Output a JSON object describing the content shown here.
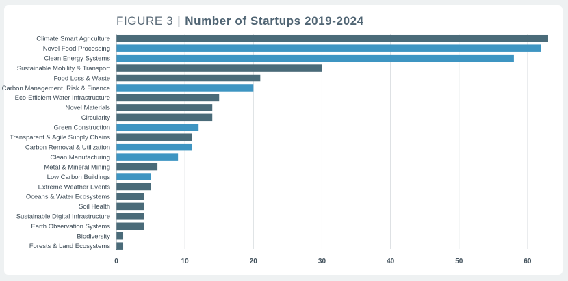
{
  "figure": {
    "label": "FIGURE 3",
    "separator": "|",
    "title": "Number of Startups 2019-2024"
  },
  "colors": {
    "dark": "#4a6b79",
    "light": "#3e95c2",
    "grid": "#d9dde0",
    "background": "#eef1f2"
  },
  "chart_data": {
    "type": "bar",
    "orientation": "horizontal",
    "title": "Number of Startups 2019-2024",
    "xlabel": "",
    "ylabel": "",
    "xlim": [
      0,
      64
    ],
    "xticks": [
      0,
      10,
      20,
      30,
      40,
      50,
      60
    ],
    "grid": "vertical",
    "categories": [
      "Climate Smart Agriculture",
      "Novel Food Processing",
      "Clean Energy Systems",
      "Sustainable Mobility & Transport",
      "Food Loss & Waste",
      "Carbon Management, Risk & Finance",
      "Eco-Efficient Water Infrastructure",
      "Novel Materials",
      "Circularity",
      "Green Construction",
      "Transparent & Agile Supply Chains",
      "Carbon Removal & Utilization",
      "Clean Manufacturing",
      "Metal & Mineral Mining",
      "Low Carbon Buildings",
      "Extreme Weather Events",
      "Oceans & Water Ecosystems",
      "Soil Health",
      "Sustainable Digital Infrastructure",
      "Earth Observation Systems",
      "Biodiversity",
      "Forests & Land Ecosystems"
    ],
    "values": [
      63,
      62,
      58,
      30,
      21,
      20,
      15,
      14,
      14,
      12,
      11,
      11,
      9,
      6,
      5,
      5,
      4,
      4,
      4,
      4,
      1,
      1
    ],
    "bar_colors": [
      "dark",
      "light",
      "light",
      "dark",
      "dark",
      "light",
      "dark",
      "dark",
      "dark",
      "light",
      "dark",
      "light",
      "light",
      "dark",
      "light",
      "dark",
      "dark",
      "dark",
      "dark",
      "dark",
      "dark",
      "dark"
    ]
  }
}
